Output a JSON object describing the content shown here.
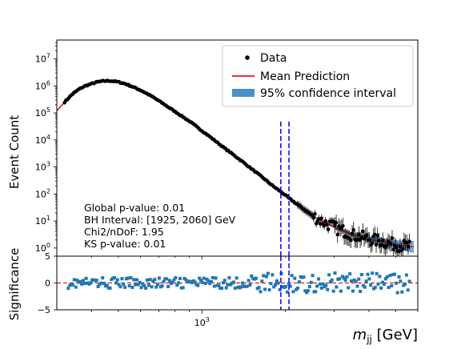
{
  "chart_data": [
    {
      "type": "scatter",
      "panel": "main",
      "ylabel": "Event Count",
      "yscale": "log",
      "xscale": "log",
      "xlim": [
        300,
        6000
      ],
      "ylim": [
        0.5,
        50000000.0
      ],
      "y_tick_values": [
        1,
        10,
        100,
        1000,
        10000,
        100000,
        1000000,
        10000000
      ],
      "y_tick_labels": [
        {
          "base": "10",
          "exp": "0"
        },
        {
          "base": "10",
          "exp": "1"
        },
        {
          "base": "10",
          "exp": "2"
        },
        {
          "base": "10",
          "exp": "3"
        },
        {
          "base": "10",
          "exp": "4"
        },
        {
          "base": "10",
          "exp": "5"
        },
        {
          "base": "10",
          "exp": "6"
        },
        {
          "base": "10",
          "exp": "7"
        }
      ],
      "series": [
        {
          "name": "Data",
          "kind": "points",
          "color": "#000000",
          "x": [
            320,
            340,
            360,
            380,
            400,
            420,
            440,
            460,
            480,
            500,
            530,
            560,
            600,
            650,
            700,
            760,
            820,
            900,
            1000,
            1100,
            1200,
            1350,
            1500,
            1650,
            1800,
            1950,
            2100,
            2300,
            2500,
            2700,
            2900,
            3100,
            3300,
            3500,
            3800,
            4100,
            4400,
            4700,
            5000,
            5400
          ],
          "y": [
            250000,
            480000,
            750000,
            1000000,
            1200000,
            1400000,
            1500000,
            1550000,
            1500000,
            1400000,
            1200000,
            950000,
            700000,
            450000,
            280000,
            160000,
            95000,
            50000,
            22000,
            10500,
            5200,
            2100,
            900,
            420,
            200,
            110,
            60,
            30,
            16,
            10,
            7,
            5,
            4,
            3,
            2.5,
            2,
            1.8,
            1.5,
            1.3,
            1.2
          ]
        },
        {
          "name": "Mean Prediction",
          "kind": "line",
          "color": "#e31a1c",
          "x": [
            300,
            320,
            340,
            360,
            380,
            400,
            420,
            440,
            460,
            480,
            500,
            530,
            560,
            600,
            650,
            700,
            760,
            820,
            900,
            1000,
            1100,
            1200,
            1350,
            1500,
            1650,
            1800,
            1950,
            2100,
            2300,
            2500,
            2700,
            2900,
            3100,
            3300,
            3500,
            3800,
            4100,
            4400,
            4700,
            5000,
            5400,
            5800
          ],
          "y": [
            120000,
            250000,
            480000,
            750000,
            1000000,
            1200000,
            1400000,
            1500000,
            1550000,
            1500000,
            1400000,
            1200000,
            950000,
            700000,
            450000,
            280000,
            160000,
            95000,
            50000,
            22000,
            10500,
            5200,
            2100,
            900,
            420,
            200,
            110,
            60,
            30,
            16,
            10,
            7,
            5,
            4,
            3,
            2.5,
            2,
            1.8,
            1.5,
            1.3,
            1.2,
            1.1
          ]
        },
        {
          "name": "95% confidence interval",
          "kind": "band",
          "color": "#4a90c8"
        }
      ],
      "vlines": [
        1925,
        2060
      ],
      "legend": {
        "position": "top-right",
        "entries": [
          "Data",
          "Mean Prediction",
          "95% confidence interval"
        ]
      },
      "annotations": [
        "Global p-value: 0.01",
        "BH Interval: [1925, 2060] GeV",
        "Chi2/nDoF: 1.95",
        "KS p-value: 0.01"
      ]
    },
    {
      "type": "scatter",
      "panel": "residual",
      "ylabel": "Significance",
      "xlabel_base": "m",
      "xlabel_sub": "jj",
      "xlabel_unit": " [GeV]",
      "xscale": "log",
      "xlim": [
        300,
        6000
      ],
      "ylim": [
        -5,
        5
      ],
      "y_tick_values": [
        5,
        0,
        -5
      ],
      "y_tick_labels": [
        "5",
        "0",
        "−5"
      ],
      "x_tick_values": [
        1000
      ],
      "x_tick_labels": [
        {
          "base": "10",
          "exp": "3"
        }
      ],
      "zero_line_color": "#e31a1c",
      "point_color": "#1f77b4",
      "vlines": [
        1925,
        2060
      ]
    }
  ]
}
